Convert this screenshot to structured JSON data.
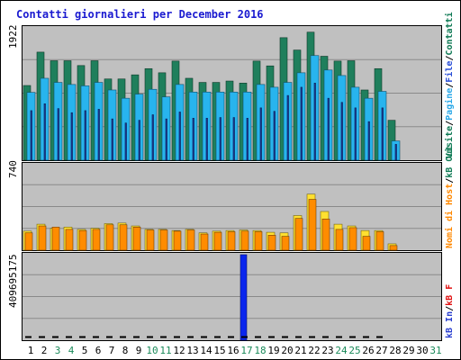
{
  "chart_data": [
    {
      "type": "bar",
      "title": "Contatti giornalieri per December 2016",
      "categories": [
        "1",
        "2",
        "3",
        "4",
        "5",
        "6",
        "7",
        "8",
        "9",
        "10",
        "11",
        "12",
        "13",
        "14",
        "15",
        "16",
        "17",
        "18",
        "19",
        "20",
        "21",
        "22",
        "23",
        "24",
        "25",
        "26",
        "27",
        "28",
        "29",
        "30",
        "31"
      ],
      "weekend_days": [
        "3",
        "4",
        "10",
        "11",
        "17",
        "18",
        "24",
        "25",
        "31"
      ],
      "ylim": [
        0,
        1922
      ],
      "y_max_label": "1922",
      "ylabel_parts": [
        {
          "text": "Visite",
          "color": "#0f7a55"
        },
        {
          "text": "Pagine",
          "color": "#2aa8e8"
        },
        {
          "text": "File",
          "color": "#2a4fd8"
        },
        {
          "text": "Contatti",
          "color": "#0f7a55"
        }
      ],
      "sep": "/",
      "series": [
        {
          "name": "Visite",
          "color": "#1f7f5c",
          "values": [
            1085,
            1570,
            1445,
            1445,
            1375,
            1445,
            1180,
            1180,
            1240,
            1330,
            1270,
            1440,
            1190,
            1130,
            1130,
            1150,
            1120,
            1440,
            1370,
            1780,
            1600,
            1860,
            1510,
            1440,
            1445,
            1020,
            1330,
            580,
            0,
            0,
            0
          ]
        },
        {
          "name": "Pagine",
          "color": "#28b4ee",
          "values": [
            985,
            1190,
            1130,
            1100,
            1080,
            1130,
            1020,
            900,
            960,
            1030,
            920,
            1100,
            990,
            990,
            990,
            990,
            990,
            1100,
            1060,
            1130,
            1270,
            1520,
            1310,
            1230,
            1060,
            900,
            1000,
            280,
            0,
            0,
            0
          ]
        },
        {
          "name": "File",
          "color": "#1c3aa0",
          "values": [
            720,
            820,
            750,
            690,
            720,
            740,
            600,
            540,
            580,
            660,
            600,
            700,
            610,
            610,
            620,
            620,
            610,
            760,
            710,
            940,
            1060,
            1120,
            900,
            840,
            760,
            560,
            760,
            230,
            0,
            0,
            0
          ]
        }
      ]
    },
    {
      "type": "bar",
      "ylim": [
        0,
        740
      ],
      "y_max_label": "740",
      "ylabel_parts": [
        {
          "text": "Nomi di Host",
          "color": "#ff8800"
        },
        {
          "text": "kB Out",
          "color": "#0f7a55"
        }
      ],
      "sep": "/",
      "series": [
        {
          "name": "Nomi di Host",
          "color": "#ffe030",
          "values": [
            165,
            225,
            190,
            200,
            180,
            190,
            230,
            235,
            210,
            180,
            180,
            170,
            180,
            150,
            165,
            170,
            175,
            170,
            155,
            150,
            300,
            485,
            335,
            225,
            210,
            170,
            170,
            55,
            0,
            0,
            0
          ]
        },
        {
          "name": "kB Out",
          "color": "#ff8c00",
          "values": [
            150,
            210,
            200,
            180,
            170,
            180,
            220,
            220,
            200,
            175,
            175,
            165,
            175,
            140,
            155,
            160,
            165,
            160,
            130,
            120,
            275,
            440,
            270,
            180,
            195,
            120,
            160,
            40,
            0,
            0,
            0
          ]
        }
      ]
    },
    {
      "type": "bar",
      "ylim": [
        0,
        409695175
      ],
      "y_max_label": "409695175",
      "ylabel_parts": [
        {
          "text": "kB In",
          "color": "#2a3fd0"
        },
        {
          "text": "kB F",
          "color": "#e01010"
        }
      ],
      "sep": "/",
      "series": [
        {
          "name": "kB In",
          "color": "#0a26ee",
          "values": [
            0,
            0,
            0,
            0,
            0,
            0,
            0,
            0,
            0,
            0,
            0,
            0,
            0,
            0,
            0,
            0,
            409695175,
            0,
            0,
            0,
            0,
            0,
            0,
            0,
            0,
            0,
            0,
            0,
            0,
            0,
            0
          ]
        }
      ]
    }
  ]
}
